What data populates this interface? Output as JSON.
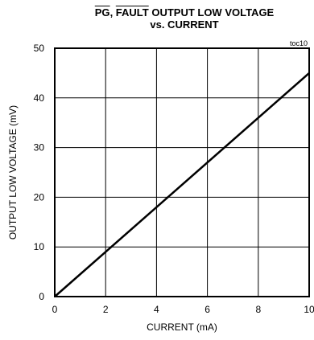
{
  "chart_data": {
    "type": "line",
    "title_line1_a": "PG",
    "title_line1_sep": ", ",
    "title_line1_b": "FAULT",
    "title_line1_c": " OUTPUT LOW VOLTAGE",
    "title_line2": "vs. CURRENT",
    "tag": "toc10",
    "xlabel": "CURRENT (mA)",
    "ylabel": "OUTPUT LOW VOLTAGE (mV)",
    "xlim": [
      0,
      10
    ],
    "ylim": [
      0,
      50
    ],
    "xticks": [
      0,
      2,
      4,
      6,
      8,
      10
    ],
    "yticks": [
      0,
      10,
      20,
      30,
      40,
      50
    ],
    "grid": true,
    "series": [
      {
        "x": [
          0,
          10
        ],
        "y": [
          0,
          45
        ]
      }
    ]
  }
}
